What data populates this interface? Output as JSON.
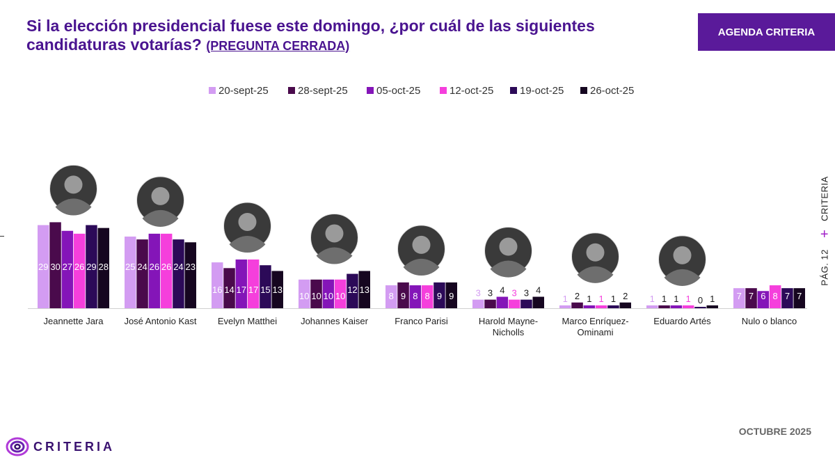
{
  "header": {
    "title": "Si la elección presidencial fuese este domingo, ¿por cuál de las siguientes candidaturas votarías?",
    "subtitle": "(PREGUNTA CERRADA)",
    "badge": "AGENDA CRITERIA"
  },
  "side": {
    "brand": "CRITERIA",
    "page": "PÁG. 12",
    "separator": "+"
  },
  "footer": {
    "month": "OCTUBRE 2025",
    "logo_text": "CRITERIA"
  },
  "colors": [
    "#d39cf2",
    "#4a0a4c",
    "#8415b8",
    "#f53fdc",
    "#2c0a58",
    "#160620"
  ],
  "chart_data": {
    "type": "bar",
    "title": "Si la elección presidencial fuese este domingo, ¿por cuál de las siguientes candidaturas votarías? (PREGUNTA CERRADA)",
    "categories": [
      [
        "Jeannette Jara"
      ],
      [
        "José Antonio Kast"
      ],
      [
        "Evelyn Matthei"
      ],
      [
        "Johannes Kaiser"
      ],
      [
        "Franco Parisi"
      ],
      [
        "Harold Mayne-",
        "Nicholls"
      ],
      [
        "Marco Enríquez-",
        "Ominami"
      ],
      [
        "Eduardo Artés"
      ],
      [
        "Nulo o blanco"
      ]
    ],
    "series": [
      {
        "name": "20-sept-25",
        "values": [
          29,
          25,
          16,
          10,
          8,
          3,
          1,
          1,
          7
        ]
      },
      {
        "name": "28-sept-25",
        "values": [
          30,
          24,
          14,
          10,
          9,
          3,
          2,
          1,
          7
        ]
      },
      {
        "name": "05-oct-25",
        "values": [
          27,
          26,
          17,
          10,
          8,
          4,
          1,
          1,
          6
        ]
      },
      {
        "name": "12-oct-25",
        "values": [
          26,
          26,
          17,
          10,
          8,
          3,
          1,
          1,
          8
        ]
      },
      {
        "name": "19-oct-25",
        "values": [
          29,
          24,
          15,
          12,
          9,
          3,
          1,
          0,
          7
        ]
      },
      {
        "name": "26-oct-25",
        "values": [
          28,
          23,
          13,
          13,
          9,
          4,
          2,
          1,
          7
        ]
      }
    ],
    "ylim": [
      0,
      30
    ],
    "legend": "top-center",
    "grid": false
  }
}
